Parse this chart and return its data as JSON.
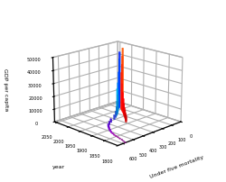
{
  "xlabel": "Under five mortality",
  "ylabel": "year",
  "zlabel": "GDP per capita",
  "xlim": [
    0,
    650
  ],
  "ylim": [
    1800,
    2060
  ],
  "zlim": [
    0,
    50000
  ],
  "xticks": [
    0,
    100,
    200,
    300,
    400,
    500,
    600
  ],
  "xticklabels": [
    "0",
    "100",
    "200",
    "300",
    "400",
    "500",
    "600"
  ],
  "yticks": [
    1800,
    1850,
    1900,
    1950,
    2000,
    2050
  ],
  "zticks": [
    0,
    10000,
    20000,
    30000,
    40000,
    50000
  ],
  "ztick_labels": [
    "0",
    "10000",
    "20000",
    "30000",
    "40000",
    "50000"
  ],
  "elev": 18,
  "azim": 225,
  "bar_data": [
    {
      "year": 1800,
      "u5m": 580,
      "gdp": 600,
      "color": "#800080"
    },
    {
      "year": 1810,
      "u5m": 570,
      "gdp": 650,
      "color": "#800080"
    },
    {
      "year": 1820,
      "u5m": 560,
      "gdp": 700,
      "color": "#850085"
    },
    {
      "year": 1830,
      "u5m": 555,
      "gdp": 750,
      "color": "#8a008a"
    },
    {
      "year": 1840,
      "u5m": 548,
      "gdp": 800,
      "color": "#8f008f"
    },
    {
      "year": 1850,
      "u5m": 542,
      "gdp": 900,
      "color": "#940094"
    },
    {
      "year": 1860,
      "u5m": 535,
      "gdp": 1000,
      "color": "#9900aa"
    },
    {
      "year": 1870,
      "u5m": 525,
      "gdp": 1100,
      "color": "#9900bb"
    },
    {
      "year": 1880,
      "u5m": 515,
      "gdp": 1300,
      "color": "#9900cc"
    },
    {
      "year": 1890,
      "u5m": 500,
      "gdp": 1600,
      "color": "#8800cc"
    },
    {
      "year": 1900,
      "u5m": 485,
      "gdp": 1900,
      "color": "#7700cc"
    },
    {
      "year": 1910,
      "u5m": 465,
      "gdp": 2100,
      "color": "#6600cc"
    },
    {
      "year": 1920,
      "u5m": 445,
      "gdp": 2300,
      "color": "#5500cc"
    },
    {
      "year": 1930,
      "u5m": 410,
      "gdp": 2600,
      "color": "#4400cc"
    },
    {
      "year": 1940,
      "u5m": 370,
      "gdp": 3000,
      "color": "#3300cc"
    },
    {
      "year": 1950,
      "u5m": 310,
      "gdp": 3800,
      "color": "#2233cc"
    },
    {
      "year": 1960,
      "u5m": 270,
      "gdp": 5000,
      "color": "#1155cc"
    },
    {
      "year": 1970,
      "u5m": 235,
      "gdp": 7000,
      "color": "#0077cc"
    },
    {
      "year": 1980,
      "u5m": 205,
      "gdp": 10000,
      "color": "#0088cc"
    },
    {
      "year": 1990,
      "u5m": 175,
      "gdp": 14000,
      "color": "#0099dd"
    },
    {
      "year": 2000,
      "u5m": 155,
      "gdp": 18000,
      "color": "#00aaee"
    },
    {
      "year": 2005,
      "u5m": 135,
      "gdp": 22000,
      "color": "#0099ff"
    },
    {
      "year": 2010,
      "u5m": 115,
      "gdp": 30000,
      "color": "#0066ff"
    },
    {
      "year": 2015,
      "u5m": 95,
      "gdp": 40000,
      "color": "#0044ff"
    },
    {
      "year": 2020,
      "u5m": 80,
      "gdp": 45000,
      "color": "#0022ff"
    }
  ],
  "red_bar_data": [
    {
      "year": 1910,
      "u5m": 290,
      "gdp": 4000,
      "color": "#cc0000"
    },
    {
      "year": 1920,
      "u5m": 265,
      "gdp": 4500,
      "color": "#cc0000"
    },
    {
      "year": 1930,
      "u5m": 245,
      "gdp": 5000,
      "color": "#dd0000"
    },
    {
      "year": 1940,
      "u5m": 225,
      "gdp": 6000,
      "color": "#dd0000"
    },
    {
      "year": 1950,
      "u5m": 205,
      "gdp": 7000,
      "color": "#ee0000"
    },
    {
      "year": 1960,
      "u5m": 185,
      "gdp": 9000,
      "color": "#ee0000"
    },
    {
      "year": 1970,
      "u5m": 165,
      "gdp": 12000,
      "color": "#ff0000"
    },
    {
      "year": 1980,
      "u5m": 148,
      "gdp": 16000,
      "color": "#ff0000"
    },
    {
      "year": 1990,
      "u5m": 130,
      "gdp": 22000,
      "color": "#ff1100"
    },
    {
      "year": 2000,
      "u5m": 110,
      "gdp": 30000,
      "color": "#ff2200"
    },
    {
      "year": 2005,
      "u5m": 92,
      "gdp": 36000,
      "color": "#ff3300"
    },
    {
      "year": 2010,
      "u5m": 75,
      "gdp": 42000,
      "color": "#ff4400"
    },
    {
      "year": 2015,
      "u5m": 60,
      "gdp": 48000,
      "color": "#ff5500"
    }
  ]
}
